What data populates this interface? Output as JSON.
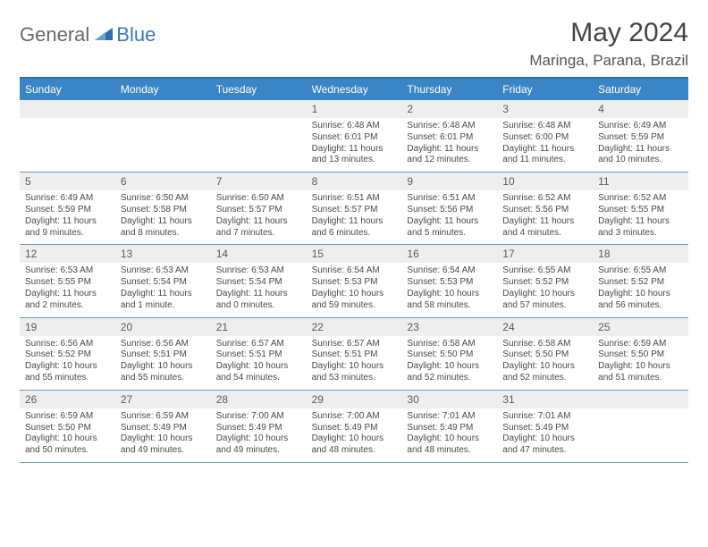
{
  "logo": {
    "general": "General",
    "blue": "Blue"
  },
  "title": "May 2024",
  "location": "Maringa, Parana, Brazil",
  "colors": {
    "header_bg": "#3a85c6",
    "header_text": "#ffffff",
    "rule": "#2f6fa8",
    "week_divider": "#6a9ccb",
    "daynum_bg": "#eeeeee",
    "text": "#4a4a4a",
    "logo_gray": "#6a6a6a",
    "logo_blue": "#3a7ab8",
    "page_bg": "#ffffff"
  },
  "typography": {
    "title_fontsize": 30,
    "location_fontsize": 17,
    "dayheader_fontsize": 12,
    "body_fontsize": 10
  },
  "day_headers": [
    "Sunday",
    "Monday",
    "Tuesday",
    "Wednesday",
    "Thursday",
    "Friday",
    "Saturday"
  ],
  "weeks": [
    [
      {
        "n": "",
        "sunrise": "",
        "sunset": "",
        "daylight": ""
      },
      {
        "n": "",
        "sunrise": "",
        "sunset": "",
        "daylight": ""
      },
      {
        "n": "",
        "sunrise": "",
        "sunset": "",
        "daylight": ""
      },
      {
        "n": "1",
        "sunrise": "Sunrise: 6:48 AM",
        "sunset": "Sunset: 6:01 PM",
        "daylight": "Daylight: 11 hours and 13 minutes."
      },
      {
        "n": "2",
        "sunrise": "Sunrise: 6:48 AM",
        "sunset": "Sunset: 6:01 PM",
        "daylight": "Daylight: 11 hours and 12 minutes."
      },
      {
        "n": "3",
        "sunrise": "Sunrise: 6:48 AM",
        "sunset": "Sunset: 6:00 PM",
        "daylight": "Daylight: 11 hours and 11 minutes."
      },
      {
        "n": "4",
        "sunrise": "Sunrise: 6:49 AM",
        "sunset": "Sunset: 5:59 PM",
        "daylight": "Daylight: 11 hours and 10 minutes."
      }
    ],
    [
      {
        "n": "5",
        "sunrise": "Sunrise: 6:49 AM",
        "sunset": "Sunset: 5:59 PM",
        "daylight": "Daylight: 11 hours and 9 minutes."
      },
      {
        "n": "6",
        "sunrise": "Sunrise: 6:50 AM",
        "sunset": "Sunset: 5:58 PM",
        "daylight": "Daylight: 11 hours and 8 minutes."
      },
      {
        "n": "7",
        "sunrise": "Sunrise: 6:50 AM",
        "sunset": "Sunset: 5:57 PM",
        "daylight": "Daylight: 11 hours and 7 minutes."
      },
      {
        "n": "8",
        "sunrise": "Sunrise: 6:51 AM",
        "sunset": "Sunset: 5:57 PM",
        "daylight": "Daylight: 11 hours and 6 minutes."
      },
      {
        "n": "9",
        "sunrise": "Sunrise: 6:51 AM",
        "sunset": "Sunset: 5:56 PM",
        "daylight": "Daylight: 11 hours and 5 minutes."
      },
      {
        "n": "10",
        "sunrise": "Sunrise: 6:52 AM",
        "sunset": "Sunset: 5:56 PM",
        "daylight": "Daylight: 11 hours and 4 minutes."
      },
      {
        "n": "11",
        "sunrise": "Sunrise: 6:52 AM",
        "sunset": "Sunset: 5:55 PM",
        "daylight": "Daylight: 11 hours and 3 minutes."
      }
    ],
    [
      {
        "n": "12",
        "sunrise": "Sunrise: 6:53 AM",
        "sunset": "Sunset: 5:55 PM",
        "daylight": "Daylight: 11 hours and 2 minutes."
      },
      {
        "n": "13",
        "sunrise": "Sunrise: 6:53 AM",
        "sunset": "Sunset: 5:54 PM",
        "daylight": "Daylight: 11 hours and 1 minute."
      },
      {
        "n": "14",
        "sunrise": "Sunrise: 6:53 AM",
        "sunset": "Sunset: 5:54 PM",
        "daylight": "Daylight: 11 hours and 0 minutes."
      },
      {
        "n": "15",
        "sunrise": "Sunrise: 6:54 AM",
        "sunset": "Sunset: 5:53 PM",
        "daylight": "Daylight: 10 hours and 59 minutes."
      },
      {
        "n": "16",
        "sunrise": "Sunrise: 6:54 AM",
        "sunset": "Sunset: 5:53 PM",
        "daylight": "Daylight: 10 hours and 58 minutes."
      },
      {
        "n": "17",
        "sunrise": "Sunrise: 6:55 AM",
        "sunset": "Sunset: 5:52 PM",
        "daylight": "Daylight: 10 hours and 57 minutes."
      },
      {
        "n": "18",
        "sunrise": "Sunrise: 6:55 AM",
        "sunset": "Sunset: 5:52 PM",
        "daylight": "Daylight: 10 hours and 56 minutes."
      }
    ],
    [
      {
        "n": "19",
        "sunrise": "Sunrise: 6:56 AM",
        "sunset": "Sunset: 5:52 PM",
        "daylight": "Daylight: 10 hours and 55 minutes."
      },
      {
        "n": "20",
        "sunrise": "Sunrise: 6:56 AM",
        "sunset": "Sunset: 5:51 PM",
        "daylight": "Daylight: 10 hours and 55 minutes."
      },
      {
        "n": "21",
        "sunrise": "Sunrise: 6:57 AM",
        "sunset": "Sunset: 5:51 PM",
        "daylight": "Daylight: 10 hours and 54 minutes."
      },
      {
        "n": "22",
        "sunrise": "Sunrise: 6:57 AM",
        "sunset": "Sunset: 5:51 PM",
        "daylight": "Daylight: 10 hours and 53 minutes."
      },
      {
        "n": "23",
        "sunrise": "Sunrise: 6:58 AM",
        "sunset": "Sunset: 5:50 PM",
        "daylight": "Daylight: 10 hours and 52 minutes."
      },
      {
        "n": "24",
        "sunrise": "Sunrise: 6:58 AM",
        "sunset": "Sunset: 5:50 PM",
        "daylight": "Daylight: 10 hours and 52 minutes."
      },
      {
        "n": "25",
        "sunrise": "Sunrise: 6:59 AM",
        "sunset": "Sunset: 5:50 PM",
        "daylight": "Daylight: 10 hours and 51 minutes."
      }
    ],
    [
      {
        "n": "26",
        "sunrise": "Sunrise: 6:59 AM",
        "sunset": "Sunset: 5:50 PM",
        "daylight": "Daylight: 10 hours and 50 minutes."
      },
      {
        "n": "27",
        "sunrise": "Sunrise: 6:59 AM",
        "sunset": "Sunset: 5:49 PM",
        "daylight": "Daylight: 10 hours and 49 minutes."
      },
      {
        "n": "28",
        "sunrise": "Sunrise: 7:00 AM",
        "sunset": "Sunset: 5:49 PM",
        "daylight": "Daylight: 10 hours and 49 minutes."
      },
      {
        "n": "29",
        "sunrise": "Sunrise: 7:00 AM",
        "sunset": "Sunset: 5:49 PM",
        "daylight": "Daylight: 10 hours and 48 minutes."
      },
      {
        "n": "30",
        "sunrise": "Sunrise: 7:01 AM",
        "sunset": "Sunset: 5:49 PM",
        "daylight": "Daylight: 10 hours and 48 minutes."
      },
      {
        "n": "31",
        "sunrise": "Sunrise: 7:01 AM",
        "sunset": "Sunset: 5:49 PM",
        "daylight": "Daylight: 10 hours and 47 minutes."
      },
      {
        "n": "",
        "sunrise": "",
        "sunset": "",
        "daylight": ""
      }
    ]
  ]
}
